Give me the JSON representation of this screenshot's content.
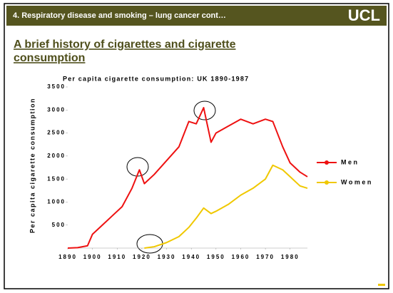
{
  "header": {
    "title": "4. Respiratory disease and smoking – lung cancer cont…",
    "logo": "UCL"
  },
  "slide_title": [
    "A brief history of cigarettes and cigarette",
    "consumption"
  ],
  "chart_data": {
    "type": "line",
    "title": "Per capita cigarette consumption: UK 1890-1987",
    "y_label": "Per capita cigarette consumption",
    "x": [
      1890,
      1894,
      1898,
      1900,
      1904,
      1908,
      1912,
      1916,
      1919,
      1921,
      1925,
      1930,
      1935,
      1939,
      1942,
      1945,
      1948,
      1950,
      1955,
      1960,
      1965,
      1970,
      1973,
      1977,
      1980,
      1984,
      1987
    ],
    "series": [
      {
        "name": "Men",
        "color": "#ee1111",
        "values": [
          0,
          10,
          50,
          300,
          500,
          700,
          900,
          1300,
          1700,
          1400,
          1600,
          1900,
          2200,
          2750,
          2700,
          3050,
          2300,
          2500,
          2650,
          2800,
          2700,
          2800,
          2750,
          2200,
          1850,
          1650,
          1550
        ]
      },
      {
        "name": "Women",
        "color": "#f0c800",
        "values": [
          null,
          null,
          null,
          null,
          null,
          null,
          null,
          null,
          null,
          0,
          30,
          120,
          250,
          450,
          650,
          870,
          750,
          800,
          950,
          1150,
          1300,
          1500,
          1800,
          1700,
          1550,
          1350,
          1300
        ]
      }
    ],
    "xlim": [
      1890,
      1987
    ],
    "xticks": [
      1890,
      1900,
      1910,
      1920,
      1930,
      1940,
      1950,
      1960,
      1970,
      1980
    ],
    "ylim": [
      0,
      3500
    ],
    "yticks": [
      500,
      1000,
      1500,
      2000,
      2500,
      3000,
      3500
    ],
    "legend": "right"
  }
}
